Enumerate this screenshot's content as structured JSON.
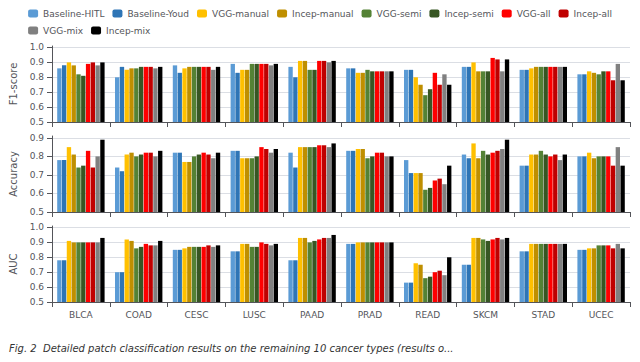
{
  "chart_data": [
    {
      "type": "bar",
      "ylabel": "F1-score",
      "categories": [
        "BLCA",
        "COAD",
        "CESC",
        "LUSC",
        "PAAD",
        "PRAD",
        "READ",
        "SKCM",
        "STAD",
        "UCEC"
      ],
      "series": [
        {
          "name": "Baseline-HITL",
          "color": "#5b9bd5",
          "values": [
            0.86,
            0.8,
            0.88,
            0.89,
            0.87,
            0.86,
            0.85,
            0.87,
            0.85,
            0.82
          ]
        },
        {
          "name": "Baseline-Youd",
          "color": "#2e75b6",
          "values": [
            0.88,
            0.87,
            0.83,
            0.83,
            0.8,
            0.86,
            0.85,
            0.87,
            0.85,
            0.82
          ]
        },
        {
          "name": "VGG-manual",
          "color": "#ffc000",
          "values": [
            0.9,
            0.85,
            0.86,
            0.85,
            0.91,
            0.83,
            0.8,
            0.9,
            0.86,
            0.84
          ]
        },
        {
          "name": "Incep-manual",
          "color": "#bf8f00",
          "values": [
            0.88,
            0.86,
            0.87,
            0.85,
            0.91,
            0.83,
            0.75,
            0.84,
            0.87,
            0.83
          ]
        },
        {
          "name": "VGG-semi",
          "color": "#548235",
          "values": [
            0.82,
            0.86,
            0.87,
            0.89,
            0.85,
            0.85,
            0.68,
            0.84,
            0.87,
            0.82
          ]
        },
        {
          "name": "Incep-semi",
          "color": "#375623",
          "values": [
            0.81,
            0.87,
            0.87,
            0.89,
            0.85,
            0.84,
            0.72,
            0.84,
            0.87,
            0.84
          ]
        },
        {
          "name": "VGG-all",
          "color": "#ff0000",
          "values": [
            0.89,
            0.87,
            0.87,
            0.89,
            0.91,
            0.84,
            0.83,
            0.93,
            0.87,
            0.84
          ]
        },
        {
          "name": "Incep-all",
          "color": "#c00000",
          "values": [
            0.9,
            0.87,
            0.87,
            0.89,
            0.91,
            0.84,
            0.75,
            0.92,
            0.87,
            0.78
          ]
        },
        {
          "name": "VGG-mix",
          "color": "#808080",
          "values": [
            0.88,
            0.86,
            0.85,
            0.88,
            0.9,
            0.84,
            0.82,
            0.84,
            0.87,
            0.89
          ]
        },
        {
          "name": "Incep-mix",
          "color": "#000000",
          "values": [
            0.9,
            0.87,
            0.87,
            0.89,
            0.91,
            0.84,
            0.75,
            0.92,
            0.87,
            0.78
          ]
        }
      ],
      "ylim": [
        0.5,
        1.01
      ],
      "yticks": [
        0.5,
        0.6,
        0.7,
        0.8,
        0.9,
        {
          "value": 1.0,
          "label": "1.0"
        }
      ],
      "grid": true,
      "legend": "top",
      "tick_labels": "y"
    },
    {
      "type": "bar",
      "ylabel": "Accuracy",
      "categories": [
        "BLCA",
        "COAD",
        "CESC",
        "LUSC",
        "PAAD",
        "PRAD",
        "READ",
        "SKCM",
        "STAD",
        "UCEC"
      ],
      "series": [
        {
          "name": "Baseline-HITL",
          "color": "#5b9bd5",
          "values": [
            0.78,
            0.74,
            0.82,
            0.83,
            0.82,
            0.83,
            0.78,
            0.81,
            0.75,
            0.8
          ]
        },
        {
          "name": "Baseline-Youd",
          "color": "#2e75b6",
          "values": [
            0.78,
            0.72,
            0.82,
            0.83,
            0.74,
            0.83,
            0.71,
            0.79,
            0.75,
            0.8
          ]
        },
        {
          "name": "VGG-manual",
          "color": "#ffc000",
          "values": [
            0.85,
            0.81,
            0.77,
            0.79,
            0.85,
            0.84,
            0.71,
            0.87,
            0.81,
            0.82
          ]
        },
        {
          "name": "Incep-manual",
          "color": "#bf8f00",
          "values": [
            0.81,
            0.82,
            0.77,
            0.79,
            0.85,
            0.84,
            0.71,
            0.79,
            0.81,
            0.79
          ]
        },
        {
          "name": "VGG-semi",
          "color": "#548235",
          "values": [
            0.74,
            0.8,
            0.8,
            0.79,
            0.85,
            0.79,
            0.62,
            0.83,
            0.83,
            0.8
          ]
        },
        {
          "name": "Incep-semi",
          "color": "#375623",
          "values": [
            0.75,
            0.81,
            0.81,
            0.8,
            0.85,
            0.8,
            0.63,
            0.81,
            0.81,
            0.8
          ]
        },
        {
          "name": "VGG-all",
          "color": "#ff0000",
          "values": [
            0.83,
            0.82,
            0.82,
            0.85,
            0.86,
            0.82,
            0.67,
            0.82,
            0.8,
            0.8
          ]
        },
        {
          "name": "Incep-all",
          "color": "#c00000",
          "values": [
            0.74,
            0.82,
            0.81,
            0.84,
            0.86,
            0.82,
            0.68,
            0.83,
            0.81,
            0.75
          ]
        },
        {
          "name": "VGG-mix",
          "color": "#808080",
          "values": [
            0.8,
            0.8,
            0.79,
            0.82,
            0.85,
            0.8,
            0.65,
            0.84,
            0.78,
            0.85
          ]
        },
        {
          "name": "Incep-mix",
          "color": "#000000",
          "values": [
            0.89,
            0.83,
            0.82,
            0.84,
            0.87,
            0.8,
            0.75,
            0.89,
            0.81,
            0.75
          ]
        }
      ],
      "ylim": [
        0.5,
        0.91
      ],
      "yticks": [
        0.5,
        0.6,
        0.7,
        0.8,
        0.9
      ],
      "grid": true,
      "tick_labels": "y"
    },
    {
      "type": "bar",
      "ylabel": "AUC",
      "categories": [
        "BLCA",
        "COAD",
        "CESC",
        "LUSC",
        "PAAD",
        "PRAD",
        "READ",
        "SKCM",
        "STAD",
        "UCEC"
      ],
      "series": [
        {
          "name": "Baseline-HITL",
          "color": "#5b9bd5",
          "values": [
            0.78,
            0.7,
            0.85,
            0.84,
            0.78,
            0.89,
            0.63,
            0.75,
            0.84,
            0.85
          ]
        },
        {
          "name": "Baseline-Youd",
          "color": "#2e75b6",
          "values": [
            0.78,
            0.7,
            0.85,
            0.84,
            0.78,
            0.89,
            0.63,
            0.75,
            0.84,
            0.85
          ]
        },
        {
          "name": "VGG-manual",
          "color": "#ffc000",
          "values": [
            0.91,
            0.92,
            0.86,
            0.89,
            0.93,
            0.9,
            0.76,
            0.93,
            0.89,
            0.86
          ]
        },
        {
          "name": "Incep-manual",
          "color": "#bf8f00",
          "values": [
            0.9,
            0.91,
            0.87,
            0.89,
            0.93,
            0.9,
            0.75,
            0.93,
            0.89,
            0.86
          ]
        },
        {
          "name": "VGG-semi",
          "color": "#548235",
          "values": [
            0.9,
            0.86,
            0.87,
            0.87,
            0.9,
            0.9,
            0.66,
            0.92,
            0.89,
            0.88
          ]
        },
        {
          "name": "Incep-semi",
          "color": "#375623",
          "values": [
            0.9,
            0.87,
            0.87,
            0.87,
            0.91,
            0.9,
            0.67,
            0.91,
            0.89,
            0.88
          ]
        },
        {
          "name": "VGG-all",
          "color": "#ff0000",
          "values": [
            0.9,
            0.89,
            0.87,
            0.9,
            0.92,
            0.9,
            0.7,
            0.92,
            0.89,
            0.88
          ]
        },
        {
          "name": "Incep-all",
          "color": "#c00000",
          "values": [
            0.9,
            0.88,
            0.88,
            0.89,
            0.93,
            0.9,
            0.71,
            0.93,
            0.89,
            0.86
          ]
        },
        {
          "name": "VGG-mix",
          "color": "#808080",
          "values": [
            0.9,
            0.88,
            0.87,
            0.88,
            0.93,
            0.9,
            0.68,
            0.92,
            0.89,
            0.89
          ]
        },
        {
          "name": "Incep-mix",
          "color": "#000000",
          "values": [
            0.93,
            0.91,
            0.88,
            0.89,
            0.95,
            0.9,
            0.8,
            0.93,
            0.89,
            0.86
          ]
        }
      ],
      "ylim": [
        0.5,
        1.01
      ],
      "yticks": [
        0.5,
        0.6,
        0.7,
        0.8,
        0.9,
        {
          "value": 1.0,
          "label": "1.0"
        }
      ],
      "grid": true,
      "annotations": [
        "Fig. 2  Detailed patch classification results on the remaining 10 cancer types (results o..."
      ]
    }
  ]
}
